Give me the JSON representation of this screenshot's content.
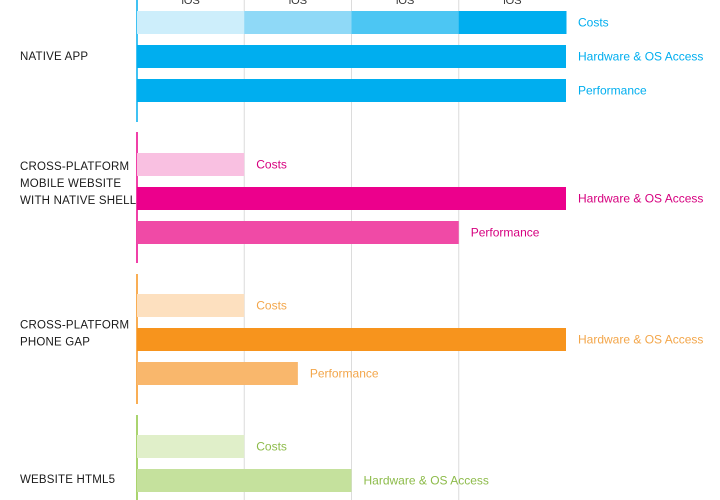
{
  "chart_data": {
    "type": "bar",
    "orientation": "horizontal",
    "title": "",
    "xlabel": "",
    "ylabel": "",
    "xlim": [
      0,
      4
    ],
    "x_tick_labels": [
      "iOS",
      "iOS",
      "iOS",
      "iOS"
    ],
    "grid": true,
    "groups": [
      {
        "name": "NATIVE APP",
        "name_lines": [
          "NATIVE APP"
        ],
        "color": "#00aeef",
        "label_color": "#00aeef",
        "bars": [
          {
            "label": "Costs",
            "value": 4,
            "segment_colors": [
              "#cdeefb",
              "#8fd9f7",
              "#4cc6f3",
              "#00aeef"
            ]
          },
          {
            "label": "Hardware & OS Access",
            "value": 4
          },
          {
            "label": "Performance",
            "value": 4
          }
        ]
      },
      {
        "name": "CROSS-PLATFORM MOBILE WEBSITE WITH NATIVE SHELL",
        "name_lines": [
          "CROSS-PLATFORM",
          "MOBILE WEBSITE",
          "WITH NATIVE SHELL"
        ],
        "color": "#ec008c",
        "label_color": "#d6007f",
        "bars": [
          {
            "label": "Costs",
            "value": 1,
            "color": "#f9c0e1"
          },
          {
            "label": "Hardware & OS Access",
            "value": 4,
            "color": "#ec008c"
          },
          {
            "label": "Performance",
            "value": 3,
            "color": "#f04aa6"
          }
        ]
      },
      {
        "name": "CROSS-PLATFORM PHONE GAP",
        "name_lines": [
          "CROSS-PLATFORM",
          "PHONE GAP"
        ],
        "color": "#f7941d",
        "label_color": "#f3a64a",
        "bars": [
          {
            "label": "Costs",
            "value": 1,
            "color": "#fde0bf"
          },
          {
            "label": "Hardware & OS Access",
            "value": 4,
            "color": "#f7941d"
          },
          {
            "label": "Performance",
            "value": 1.5,
            "color": "#f9b76c"
          }
        ]
      },
      {
        "name": "WEBSITE HTML5",
        "name_lines": [
          "WEBSITE HTML5"
        ],
        "color": "#8dc63f",
        "label_color": "#8dbb4a",
        "bars": [
          {
            "label": "Costs",
            "value": 1,
            "color": "#e0efc9"
          },
          {
            "label": "Hardware & OS Access",
            "value": 2,
            "color": "#c5e19d"
          }
        ]
      }
    ]
  }
}
